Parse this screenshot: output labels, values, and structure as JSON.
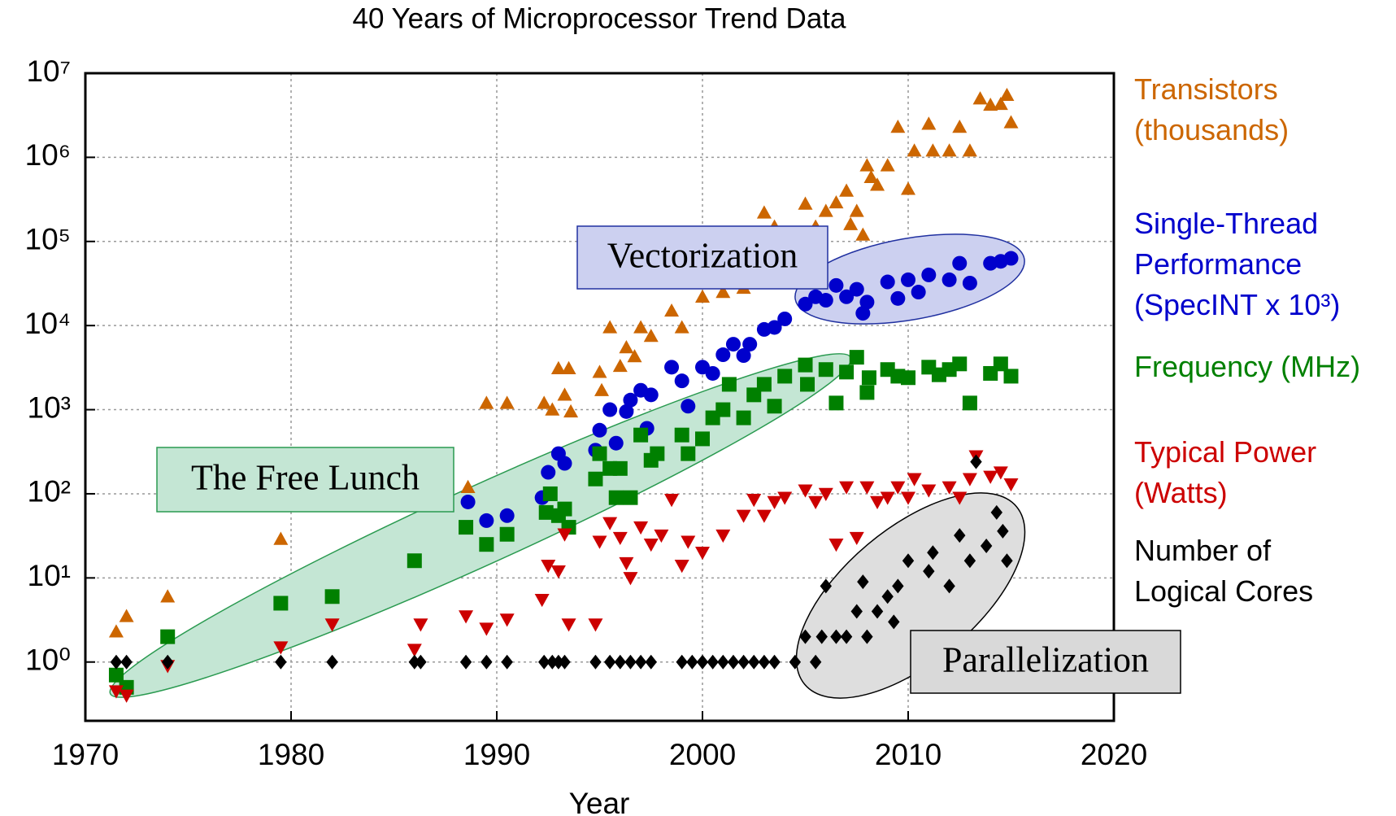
{
  "chart_data": {
    "type": "scatter",
    "title": "40 Years of Microprocessor Trend Data",
    "x_label": "Year",
    "xlim": [
      1970,
      2020
    ],
    "xticks": [
      1970,
      1980,
      1990,
      2000,
      2010,
      2020
    ],
    "ylim": [
      0.2,
      10000000
    ],
    "log_y": true,
    "grid": true,
    "yticks": [
      {
        "value": 1,
        "label": "10⁰"
      },
      {
        "value": 10,
        "label": "10¹"
      },
      {
        "value": 100,
        "label": "10²"
      },
      {
        "value": 1000,
        "label": "10³"
      },
      {
        "value": 10000,
        "label": "10⁴"
      },
      {
        "value": 100000,
        "label": "10⁵"
      },
      {
        "value": 1000000,
        "label": "10⁶"
      },
      {
        "value": 10000000,
        "label": "10⁷"
      }
    ],
    "annotations": [
      "Vectorization",
      "The Free Lunch",
      "Parallelization"
    ],
    "series": [
      {
        "name": "Transistors (thousands)",
        "color": "#cc6600",
        "marker": "triangle-up",
        "x": [
          1971.5,
          1972,
          1974,
          1979.5,
          1988.6,
          1989.5,
          1990.5,
          1992.3,
          1992.7,
          1993,
          1993.3,
          1993.5,
          1993.6,
          1995,
          1995.1,
          1995.5,
          1996,
          1996.3,
          1996.7,
          1997,
          1997.5,
          1998.5,
          1999,
          2000,
          2000.5,
          2001,
          2001.5,
          2002,
          2003,
          2003.5,
          2004.5,
          2005,
          2005.5,
          2006,
          2006.5,
          2007,
          2007.2,
          2007.5,
          2007.8,
          2008,
          2008.2,
          2008.5,
          2009,
          2009.5,
          2010,
          2010.3,
          2011,
          2011.2,
          2012,
          2012.5,
          2013,
          2013.5,
          2014,
          2014.5,
          2014.8,
          2015
        ],
        "values": [
          2.3,
          3.5,
          6,
          29,
          120,
          1200,
          1200,
          1200,
          1000,
          3100,
          1500,
          3100,
          950,
          2800,
          1700,
          9500,
          3300,
          5500,
          4300,
          9500,
          7500,
          15000,
          9500,
          22000,
          42000,
          25000,
          42000,
          28000,
          220000,
          150000,
          110000,
          280000,
          150000,
          230000,
          290000,
          400000,
          160000,
          230000,
          120000,
          800000,
          580000,
          470000,
          800000,
          2300000,
          420000,
          1200000,
          2500000,
          1200000,
          1200000,
          2300000,
          1200000,
          5000000,
          4200000,
          4300000,
          5500000,
          2600000
        ]
      },
      {
        "name": "Single-Thread Performance (SpecINT x 10³)",
        "color": "#0000cc",
        "marker": "circle",
        "x": [
          1988.6,
          1989.5,
          1990.5,
          1992.2,
          1992.5,
          1993,
          1993.3,
          1994.8,
          1995,
          1995.5,
          1995.8,
          1996.3,
          1996.5,
          1997,
          1997.3,
          1997.5,
          1998.5,
          1999,
          1999.3,
          2000,
          2000.5,
          2001,
          2001.5,
          2002,
          2002.3,
          2003,
          2003.5,
          2004,
          2005,
          2005.5,
          2006,
          2006.5,
          2007,
          2007.5,
          2007.8,
          2008,
          2009,
          2009.5,
          2010,
          2010.5,
          2011,
          2012,
          2012.5,
          2013,
          2014,
          2014.5,
          2015
        ],
        "values": [
          80,
          48,
          55,
          90,
          180,
          300,
          230,
          330,
          570,
          1000,
          400,
          950,
          1300,
          1700,
          600,
          1500,
          3200,
          2200,
          1100,
          3200,
          2700,
          4500,
          6000,
          4400,
          6000,
          9000,
          9500,
          12000,
          18000,
          22000,
          20000,
          30000,
          22000,
          27000,
          14000,
          19000,
          33000,
          21000,
          35000,
          25000,
          40000,
          35000,
          55000,
          32000,
          55000,
          58000,
          63000
        ]
      },
      {
        "name": "Frequency (MHz)",
        "color": "#008000",
        "marker": "square",
        "x": [
          1971.5,
          1972,
          1974,
          1979.5,
          1982,
          1986,
          1988.5,
          1989.5,
          1990.5,
          1992.4,
          1992.6,
          1993,
          1993.3,
          1993.5,
          1994.8,
          1995,
          1995.5,
          1995.8,
          1996,
          1996.5,
          1997,
          1997.5,
          1997.8,
          1999,
          1999.3,
          2000,
          2000.5,
          2001,
          2001.3,
          2002,
          2002.5,
          2003,
          2003.5,
          2004,
          2005,
          2005.1,
          2006,
          2006.5,
          2007,
          2007.5,
          2008,
          2008.1,
          2009,
          2009.5,
          2010,
          2011,
          2011.5,
          2012,
          2012.5,
          2013,
          2014,
          2014.5,
          2015
        ],
        "values": [
          0.7,
          0.5,
          2,
          5,
          6,
          16,
          40,
          25,
          33,
          60,
          100,
          55,
          66,
          40,
          150,
          300,
          200,
          90,
          200,
          90,
          500,
          250,
          300,
          500,
          300,
          450,
          800,
          1000,
          2000,
          800,
          1500,
          2000,
          1100,
          2500,
          3400,
          2000,
          3000,
          1200,
          2800,
          4200,
          1600,
          2400,
          3000,
          2500,
          2400,
          3200,
          2600,
          3000,
          3500,
          1200,
          2700,
          3500,
          2500
        ]
      },
      {
        "name": "Typical Power (Watts)",
        "color": "#cc0000",
        "marker": "triangle-down",
        "x": [
          1971.5,
          1972,
          1974,
          1979.5,
          1982,
          1986,
          1986.3,
          1988.5,
          1989.5,
          1990.5,
          1992.2,
          1992.5,
          1993,
          1993.3,
          1993.5,
          1994.8,
          1995,
          1995.5,
          1996,
          1996.3,
          1996.5,
          1997,
          1997.5,
          1998,
          1998.5,
          1999,
          1999.3,
          2000,
          2001,
          2002,
          2002.5,
          2003,
          2003.5,
          2004,
          2005,
          2005.5,
          2006,
          2006.5,
          2007,
          2007.5,
          2008,
          2008.5,
          2009,
          2009.5,
          2010,
          2010.3,
          2011,
          2012,
          2012.5,
          2013,
          2013.3,
          2014,
          2014.5,
          2015
        ],
        "values": [
          0.45,
          0.4,
          0.9,
          1.5,
          2.8,
          1.4,
          2.8,
          3.5,
          2.5,
          3.2,
          5.5,
          14,
          12,
          33,
          2.8,
          2.8,
          27,
          45,
          30,
          15,
          10,
          40,
          25,
          32,
          85,
          14,
          27,
          20,
          32,
          55,
          85,
          55,
          80,
          90,
          110,
          80,
          100,
          25,
          120,
          30,
          120,
          80,
          90,
          120,
          90,
          150,
          110,
          120,
          90,
          150,
          280,
          160,
          180,
          130
        ]
      },
      {
        "name": "Number of Logical Cores",
        "color": "#000000",
        "marker": "diamond",
        "x": [
          1971.5,
          1972,
          1974,
          1979.5,
          1982,
          1986,
          1986.3,
          1988.5,
          1989.5,
          1990.5,
          1992.3,
          1992.7,
          1993,
          1993.3,
          1994.8,
          1995.5,
          1996,
          1996.5,
          1997,
          1997.5,
          1999,
          1999.5,
          2000,
          2000.5,
          2001,
          2001.5,
          2002,
          2002.5,
          2003,
          2003.5,
          2004.5,
          2005,
          2005.5,
          2005.8,
          2006,
          2006.5,
          2007,
          2007.5,
          2007.8,
          2008,
          2008.5,
          2009,
          2009.3,
          2009.5,
          2010,
          2011,
          2011.2,
          2012,
          2012.5,
          2013,
          2013.3,
          2013.8,
          2014.3,
          2014.6,
          2014.8
        ],
        "values": [
          1,
          1,
          1,
          1,
          1,
          1,
          1,
          1,
          1,
          1,
          1,
          1,
          1,
          1,
          1,
          1,
          1,
          1,
          1,
          1,
          1,
          1,
          1,
          1,
          1,
          1,
          1,
          1,
          1,
          1,
          1,
          2,
          1,
          2,
          8,
          2,
          2,
          4,
          9,
          2,
          4,
          6,
          3,
          8,
          16,
          12,
          20,
          8,
          32,
          16,
          240,
          24,
          60,
          36,
          16
        ]
      }
    ]
  }
}
